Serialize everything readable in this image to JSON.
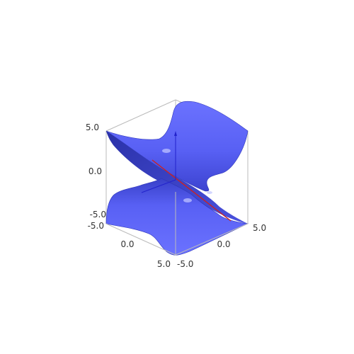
{
  "chart_data": {
    "type": "surface3d",
    "surface": "hyperbolic saddle surface",
    "axes": {
      "x": {
        "range": [
          -5.0,
          5.0
        ],
        "ticks": [
          "-5.0",
          "0.0",
          "5.0"
        ]
      },
      "y": {
        "range": [
          -5.0,
          5.0
        ],
        "ticks": [
          "-5.0",
          "0.0",
          "5.0"
        ]
      },
      "z": {
        "range": [
          -5.0,
          5.0
        ],
        "ticks": [
          "-5.0",
          "0.0",
          "5.0"
        ]
      }
    },
    "bounding_box": true,
    "colors": {
      "surface": "#5a62f7",
      "surface_dark": "#2e35b8",
      "surface_light": "#8a90ff",
      "frame": "#bbbbbb",
      "axis_x": "#cc2222",
      "axis_y": "#22aa22",
      "axis_z": "#2222cc"
    }
  }
}
